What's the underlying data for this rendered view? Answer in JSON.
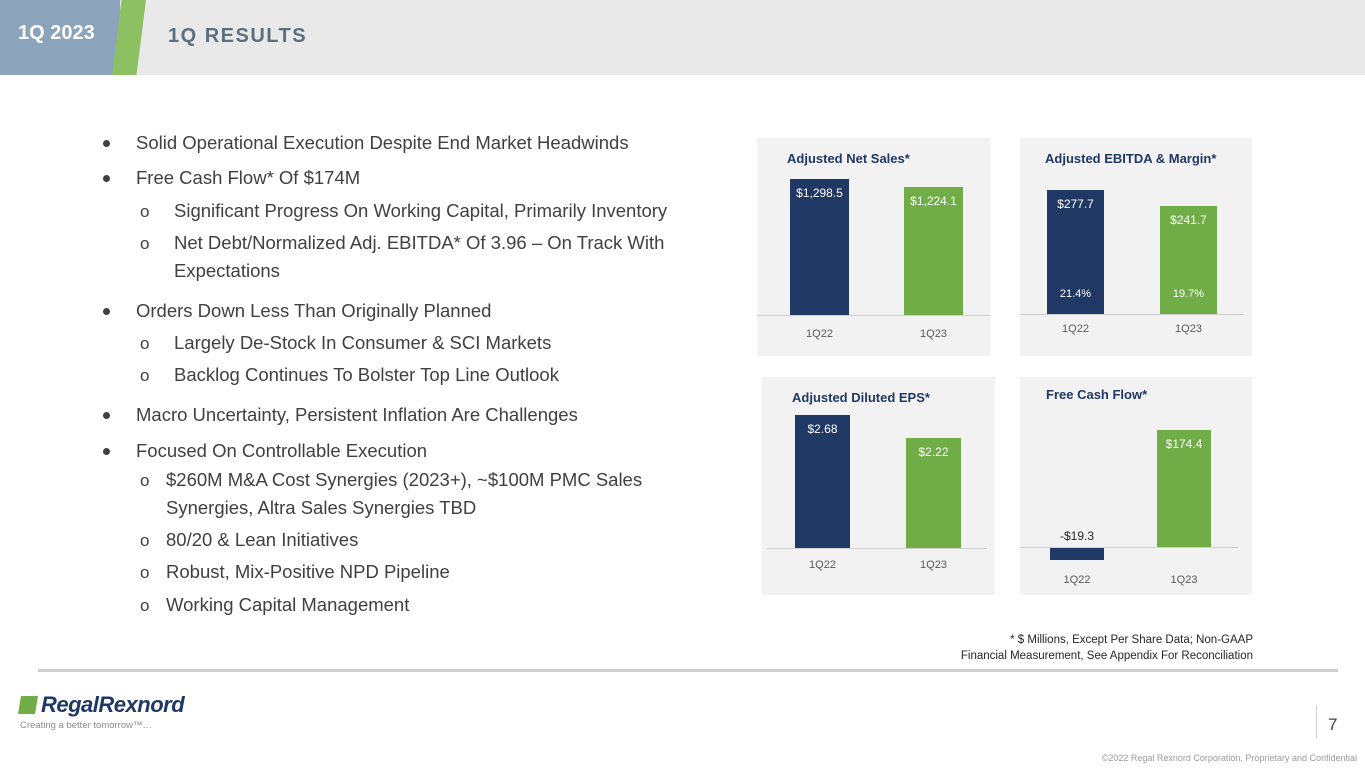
{
  "header": {
    "badge": "1Q 2023",
    "title": "1Q RESULTS"
  },
  "bullets": [
    {
      "level": 1,
      "text": "Solid Operational Execution Despite End Market Headwinds"
    },
    {
      "level": 1,
      "text": "Free Cash Flow* Of $174M"
    },
    {
      "level": 2,
      "text": "Significant Progress On Working Capital, Primarily Inventory"
    },
    {
      "level": 2,
      "text": "Net Debt/Normalized Adj. EBITDA* Of 3.96 – On Track With"
    },
    {
      "level": 2,
      "text": "Expectations",
      "cont": true
    },
    {
      "level": 1,
      "text": "Orders Down Less Than Originally Planned"
    },
    {
      "level": 2,
      "text": "Largely De-Stock In Consumer & SCI Markets"
    },
    {
      "level": 2,
      "text": "Backlog Continues To Bolster Top Line Outlook"
    },
    {
      "level": 1,
      "text": "Macro Uncertainty, Persistent Inflation Are Challenges"
    },
    {
      "level": 1,
      "text": "Focused On Controllable Execution"
    },
    {
      "level": 3,
      "text": "$260M M&A Cost Synergies (2023+), ~$100M PMC Sales"
    },
    {
      "level": 3,
      "text": "Synergies, Altra Sales Synergies TBD",
      "cont": true
    },
    {
      "level": 3,
      "text": "80/20 & Lean Initiatives"
    },
    {
      "level": 3,
      "text": "Robust, Mix-Positive NPD Pipeline"
    },
    {
      "level": 3,
      "text": "Working Capital Management"
    }
  ],
  "sub_marker": "o",
  "chart_data": [
    {
      "type": "bar",
      "title": "Adjusted Net Sales*",
      "categories": [
        "1Q22",
        "1Q23"
      ],
      "values": [
        1298.5,
        1224.1
      ],
      "labels": [
        "$1,298.5",
        "$1,224.1"
      ],
      "ylim": [
        0,
        1420
      ]
    },
    {
      "type": "bar",
      "title": "Adjusted EBITDA & Margin*",
      "categories": [
        "1Q22",
        "1Q23"
      ],
      "values": [
        277.7,
        241.7
      ],
      "labels": [
        "$277.7",
        "$241.7"
      ],
      "margins": [
        "21.4%",
        "19.7%"
      ],
      "ylim": [
        0,
        295
      ]
    },
    {
      "type": "bar",
      "title": "Adjusted Diluted EPS*",
      "categories": [
        "1Q22",
        "1Q23"
      ],
      "values": [
        2.68,
        2.22
      ],
      "labels": [
        "$2.68",
        "$2.22"
      ],
      "ylim": [
        0,
        2.85
      ]
    },
    {
      "type": "bar",
      "title": "Free Cash Flow*",
      "categories": [
        "1Q22",
        "1Q23"
      ],
      "values": [
        -19.3,
        174.4
      ],
      "labels": [
        "-$19.3",
        "$174.4"
      ],
      "ylim": [
        -25,
        185
      ]
    }
  ],
  "colors": {
    "navy": "#203864",
    "green": "#70ad47"
  },
  "footnote": {
    "line1": "* $ Millions, Except Per Share Data; Non-GAAP",
    "line2": "Financial Measurement, See Appendix For Reconciliation"
  },
  "footer": {
    "logo": "RegalRexnord",
    "tagline": "Creating a better tomorrow™…",
    "page": "7",
    "copyright": "©2022 Regal Rexnord Corporation, Proprietary and Confidential"
  }
}
